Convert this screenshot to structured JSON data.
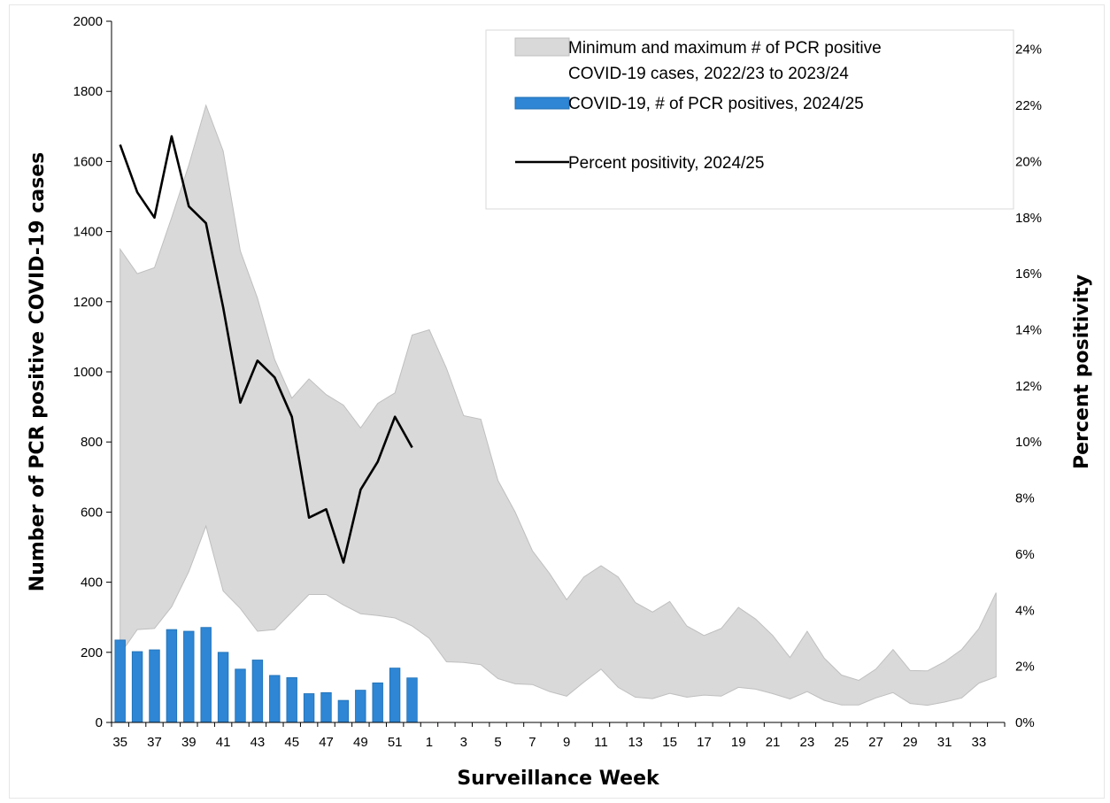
{
  "chart_data": {
    "type": "line",
    "xlabel": "Surveillance Week",
    "ylabel": "Number of PCR positive COVID-19 cases",
    "y2label": "Percent positivity",
    "ylim": [
      0,
      2000
    ],
    "y2lim": [
      0,
      25
    ],
    "yticks": [
      0,
      200,
      400,
      600,
      800,
      1000,
      1200,
      1400,
      1600,
      1800,
      2000
    ],
    "y2ticks": [
      "0%",
      "2%",
      "4%",
      "6%",
      "8%",
      "10%",
      "12%",
      "14%",
      "16%",
      "18%",
      "20%",
      "22%",
      "24%"
    ],
    "weeks": [
      35,
      36,
      37,
      38,
      39,
      40,
      41,
      42,
      43,
      44,
      45,
      46,
      47,
      48,
      49,
      50,
      51,
      52,
      1,
      2,
      3,
      4,
      5,
      6,
      7,
      8,
      9,
      10,
      11,
      12,
      13,
      14,
      15,
      16,
      17,
      18,
      19,
      20,
      21,
      22,
      23,
      24,
      25,
      26,
      27,
      28,
      29,
      30,
      31,
      32,
      33,
      34
    ],
    "xtick_labels": [
      "35",
      "37",
      "39",
      "41",
      "43",
      "45",
      "47",
      "49",
      "51",
      "1",
      "3",
      "5",
      "7",
      "9",
      "11",
      "13",
      "15",
      "17",
      "19",
      "21",
      "23",
      "25",
      "27",
      "29",
      "31",
      "33"
    ],
    "grid": false,
    "legend_position": "top-right",
    "series": [
      {
        "name": "Minimum and maximum # of PCR positive COVID-19 cases, 2022/23 to 2023/24",
        "kind": "range",
        "color": "#d9d9d9",
        "min": [
          195,
          265,
          268,
          330,
          430,
          560,
          375,
          325,
          260,
          265,
          315,
          365,
          365,
          335,
          310,
          305,
          298,
          275,
          240,
          173,
          171,
          165,
          125,
          110,
          108,
          88,
          75,
          115,
          152,
          100,
          72,
          68,
          83,
          72,
          78,
          75,
          100,
          95,
          82,
          67,
          88,
          63,
          50,
          50,
          70,
          85,
          54,
          49,
          58,
          70,
          112,
          130
        ],
        "max": [
          1350,
          1280,
          1297,
          1440,
          1590,
          1760,
          1630,
          1345,
          1210,
          1035,
          925,
          980,
          935,
          905,
          840,
          910,
          940,
          1105,
          1120,
          1010,
          875,
          865,
          690,
          600,
          490,
          425,
          350,
          415,
          447,
          415,
          342,
          315,
          345,
          275,
          248,
          268,
          328,
          295,
          248,
          185,
          260,
          183,
          135,
          120,
          152,
          208,
          148,
          147,
          173,
          208,
          268,
          370
        ]
      },
      {
        "name": "COVID-19, # of PCR positives, 2024/25",
        "kind": "bar",
        "color": "#2e86d4",
        "values": [
          235,
          202,
          207,
          265,
          260,
          271,
          200,
          152,
          178,
          134,
          128,
          82,
          85,
          63,
          92,
          113,
          155,
          127
        ]
      },
      {
        "name": "Percent positivity, 2024/25",
        "kind": "line",
        "axis": "right",
        "color": "#000000",
        "values": [
          20.6,
          18.9,
          18.0,
          20.9,
          18.4,
          17.8,
          14.8,
          11.4,
          12.9,
          12.3,
          10.9,
          7.3,
          7.6,
          5.7,
          8.3,
          9.3,
          10.9,
          9.8
        ]
      }
    ]
  }
}
